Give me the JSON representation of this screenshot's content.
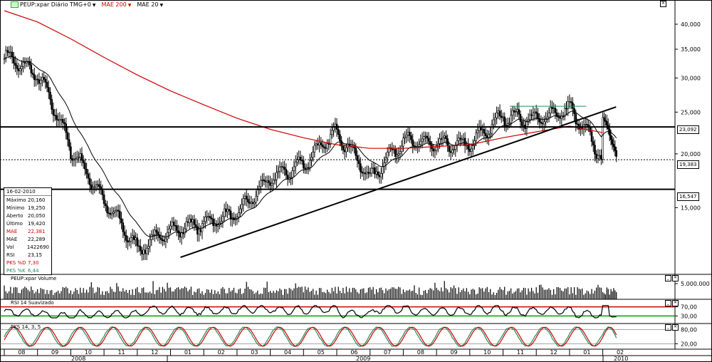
{
  "header": {
    "symbol_label": "PEUP:xpar Diário TMG+0",
    "mae200_label": "MAE 200",
    "mae20_label": "MAE 20",
    "colors": {
      "mae200": "#d00000",
      "mae20": "#000000"
    }
  },
  "price_axis": {
    "ticks": [
      "40,000",
      "35,000",
      "30,000",
      "25,000",
      "20,000",
      "15,000"
    ],
    "tick_values": [
      40,
      35,
      30,
      25,
      20,
      15
    ],
    "ylim_log": [
      10.5,
      43.5
    ],
    "scale": "log"
  },
  "price_tags": [
    {
      "value": "23,092",
      "level": 23.092,
      "style": "solid"
    },
    {
      "value": "19,383",
      "level": 19.383,
      "style": "dotted"
    },
    {
      "value": "16,547",
      "level": 16.547,
      "style": "solid"
    }
  ],
  "data_box": {
    "date": "16-02-2010",
    "rows": [
      {
        "k": "Máximo",
        "v": "20,160",
        "color": "#000000"
      },
      {
        "k": "Mínimo",
        "v": "19,250",
        "color": "#000000"
      },
      {
        "k": "Aberto",
        "v": "20,050",
        "color": "#000000"
      },
      {
        "k": "Último",
        "v": "19,420",
        "color": "#000000"
      },
      {
        "k": "MAE",
        "v": "22,381",
        "color": "#d00000"
      },
      {
        "k": "MAE",
        "v": "22,289",
        "color": "#000000"
      },
      {
        "k": "Vol",
        "v": "1422690",
        "color": "#000000"
      },
      {
        "k": "RSI",
        "v": "23,15",
        "color": "#000000"
      },
      {
        "k": "PKS %D",
        "v": "7,30",
        "color": "#d00000"
      },
      {
        "k": "PKS %K",
        "v": "6,44",
        "color": "#2a8a5a"
      }
    ]
  },
  "volume_panel": {
    "title": "PEUP:xpar Volume",
    "tick": "5.000.000"
  },
  "rsi_panel": {
    "title": "RSI 14 Suavizado",
    "ticks": [
      "70,00",
      "30,00"
    ],
    "upper": 70,
    "lower": 30,
    "upper_color": "#d00000",
    "lower_color": "#00a000"
  },
  "pks_panel": {
    "title": "PKS 14, 3, 5",
    "ticks": [
      "80,00",
      "20,00"
    ],
    "d_color": "#d00000",
    "k_color": "#2a8a5a"
  },
  "time_axis": {
    "months": [
      "08",
      "09",
      "10",
      "11",
      "12",
      "01",
      "02",
      "03",
      "04",
      "05",
      "06",
      "07",
      "08",
      "09",
      "10",
      "11",
      "12",
      "01",
      "02"
    ],
    "years": [
      {
        "label": "2008"
      },
      {
        "label": "2009"
      },
      {
        "label": "2010"
      }
    ]
  },
  "chart_data": {
    "type": "candlestick",
    "title": "PEUP:xpar Diário TMG+0",
    "approx_closes_by_month": {
      "months": [
        "2008-08",
        "2008-09",
        "2008-10",
        "2008-11",
        "2008-12",
        "2009-01",
        "2009-02",
        "2009-03",
        "2009-04",
        "2009-05",
        "2009-06",
        "2009-07",
        "2009-08",
        "2009-09",
        "2009-10",
        "2009-11",
        "2009-12",
        "2010-01",
        "2010-02"
      ],
      "values": [
        33.8,
        30.5,
        20.5,
        15.5,
        12.0,
        13.3,
        13.8,
        14.5,
        17.5,
        19.0,
        22.5,
        17.5,
        21.5,
        21.0,
        21.0,
        24.5,
        24.0,
        25.5,
        19.4
      ]
    },
    "mae200_approx": [
      43.0,
      40.5,
      37.0,
      33.5,
      30.5,
      28.0,
      26.0,
      24.2,
      22.8,
      21.8,
      21.0,
      20.6,
      20.6,
      20.8,
      21.0,
      21.8,
      22.5,
      23.2,
      22.4
    ],
    "horizontal_levels": [
      23.092,
      19.383,
      16.547
    ],
    "trendline": {
      "from": [
        "2009-01",
        11.5
      ],
      "to": [
        "2010-02",
        25.7
      ]
    },
    "resistance_segment": {
      "from": "2009-11",
      "to": "2010-01",
      "value": 25.8
    }
  }
}
